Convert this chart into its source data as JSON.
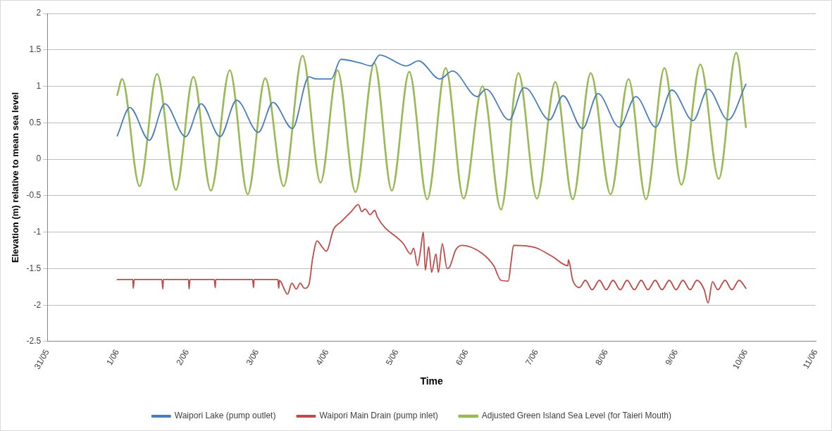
{
  "chart_data": {
    "type": "line",
    "xlabel": "Time",
    "ylabel": "Elevation (m) relative to mean sea level",
    "xlim": [
      "--05-31",
      "--06-11"
    ],
    "xticks": [
      {
        "value": "--05-31",
        "label": "31/05"
      },
      {
        "value": "--06-01",
        "label": "1/06"
      },
      {
        "value": "--06-02",
        "label": "2/06"
      },
      {
        "value": "--06-03",
        "label": "3/06"
      },
      {
        "value": "--06-04",
        "label": "4/06"
      },
      {
        "value": "--06-05",
        "label": "5/06"
      },
      {
        "value": "--06-06",
        "label": "6/06"
      },
      {
        "value": "--06-07",
        "label": "7/06"
      },
      {
        "value": "--06-08",
        "label": "8/06"
      },
      {
        "value": "--06-09",
        "label": "9/06"
      },
      {
        "value": "--06-10",
        "label": "10/06"
      },
      {
        "value": "--06-11",
        "label": "11/06"
      }
    ],
    "ylim": [
      -2.5,
      2
    ],
    "yticks": [
      -2.5,
      -2,
      -1.5,
      -1,
      -0.5,
      0,
      0.5,
      1,
      1.5,
      2
    ],
    "grid": "y",
    "legend": "bottom",
    "marker": "none",
    "line_style": "solid",
    "series": [
      {
        "name": "Waipori Lake (pump outlet)",
        "color": "#4a7ebb",
        "x": [
          "--06-01T00:00",
          "--06-01T04:20",
          "--06-01T11:00",
          "--06-01T16:20",
          "--06-01T23:30",
          "--06-02T04:50",
          "--06-02T11:20",
          "--06-02T17:00",
          "--06-03T00:30",
          "--06-03T05:30",
          "--06-03T12:10",
          "--06-03T17:50",
          "--06-03T20:20",
          "--06-04T01:30",
          "--06-04T04:50",
          "--06-04T11:30",
          "--06-04T15:10",
          "--06-04T18:10",
          "--06-05T03:20",
          "--06-05T07:30",
          "--06-05T14:50",
          "--06-05T19:10",
          "--06-06T03:40",
          "--06-06T06:40",
          "--06-06T14:40",
          "--06-06T19:40",
          "--06-06T21:10",
          "--06-07T04:30",
          "--06-07T09:10",
          "--06-07T15:50",
          "--06-07T21:10",
          "--06-08T04:30",
          "--06-08T10:10",
          "--06-08T17:00",
          "--06-08T22:30",
          "--06-09T05:50",
          "--06-09T11:00",
          "--06-09T17:50",
          "--06-10T00:00"
        ],
        "values": [
          0.32,
          0.71,
          0.26,
          0.76,
          0.31,
          0.76,
          0.31,
          0.81,
          0.37,
          0.78,
          0.42,
          1.13,
          1.1,
          1.1,
          1.37,
          1.32,
          1.28,
          1.43,
          1.28,
          1.35,
          1.1,
          1.21,
          0.86,
          0.96,
          0.54,
          0.98,
          0.96,
          0.54,
          0.87,
          0.42,
          0.9,
          0.44,
          0.86,
          0.44,
          0.95,
          0.53,
          0.96,
          0.54,
          1.03
        ]
      },
      {
        "name": "Waipori Main Drain (pump inlet)",
        "color": "#be4b48",
        "x": [
          "--06-01T00:00",
          "--06-01T05:20",
          "--06-01T05:30",
          "--06-01T05:50",
          "--06-01T15:20",
          "--06-01T15:40",
          "--06-01T15:50",
          "--06-02T00:30",
          "--06-02T00:40",
          "--06-02T01:00",
          "--06-02T09:20",
          "--06-02T09:40",
          "--06-02T09:50",
          "--06-02T22:30",
          "--06-02T22:50",
          "--06-02T23:00",
          "--06-03T07:10",
          "--06-03T07:30",
          "--06-03T07:40",
          "--06-03T10:30",
          "--06-03T12:00",
          "--06-03T13:30",
          "--06-03T14:50",
          "--06-03T16:20",
          "--06-03T17:50",
          "--06-03T19:10",
          "--06-03T20:40",
          "--06-03T22:20",
          "--06-03T23:50",
          "--06-04T02:20",
          "--06-04T04:50",
          "--06-04T08:20",
          "--06-04T10:50",
          "--06-04T12:00",
          "--06-04T13:10",
          "--06-04T14:50",
          "--06-04T16:30",
          "--06-04T17:20",
          "--06-05T02:20",
          "--06-05T04:50",
          "--06-05T05:50",
          "--06-05T07:10",
          "--06-05T08:10",
          "--06-05T09:10",
          "--06-05T09:50",
          "--06-05T11:00",
          "--06-05T12:00",
          "--06-05T13:30",
          "--06-05T14:20",
          "--06-05T15:40",
          "--06-05T17:20",
          "--06-05T18:10",
          "--06-05T20:20",
          "--06-05T22:30",
          "--06-06T05:20",
          "--06-06T09:20",
          "--06-06T11:50",
          "--06-06T14:20",
          "--06-06T15:20",
          "--06-06T16:10",
          "--06-06T23:30",
          "--06-07T05:20",
          "--06-07T10:50",
          "--06-07T11:00",
          "--06-07T12:30",
          "--06-07T14:50",
          "--06-07T16:50",
          "--06-07T19:10",
          "--06-07T21:40",
          "--06-08T00:00",
          "--06-08T02:20",
          "--06-08T04:50",
          "--06-08T07:10",
          "--06-08T09:40",
          "--06-08T12:00",
          "--06-08T14:20",
          "--06-08T16:50",
          "--06-08T19:10",
          "--06-08T21:40",
          "--06-09T00:00",
          "--06-09T02:20",
          "--06-09T04:50",
          "--06-09T07:10",
          "--06-09T09:40",
          "--06-09T11:00",
          "--06-09T12:30",
          "--06-09T14:20",
          "--06-09T16:50",
          "--06-09T19:10",
          "--06-09T21:40",
          "--06-10T00:00"
        ],
        "values": [
          -1.65,
          -1.65,
          -1.77,
          -1.65,
          -1.65,
          -1.78,
          -1.65,
          -1.65,
          -1.78,
          -1.65,
          -1.65,
          -1.76,
          -1.65,
          -1.65,
          -1.76,
          -1.65,
          -1.65,
          -1.77,
          -1.66,
          -1.85,
          -1.7,
          -1.78,
          -1.7,
          -1.77,
          -1.72,
          -1.35,
          -1.12,
          -1.2,
          -1.26,
          -0.96,
          -0.86,
          -0.72,
          -0.62,
          -0.72,
          -0.68,
          -0.76,
          -0.7,
          -0.79,
          -1.16,
          -1.3,
          -1.22,
          -1.46,
          -1.26,
          -1.0,
          -1.52,
          -1.2,
          -1.55,
          -1.3,
          -1.55,
          -1.16,
          -1.5,
          -1.48,
          -1.24,
          -1.18,
          -1.29,
          -1.46,
          -1.66,
          -1.67,
          -1.4,
          -1.18,
          -1.21,
          -1.33,
          -1.46,
          -1.38,
          -1.66,
          -1.76,
          -1.66,
          -1.79,
          -1.66,
          -1.79,
          -1.66,
          -1.79,
          -1.66,
          -1.79,
          -1.66,
          -1.79,
          -1.66,
          -1.79,
          -1.66,
          -1.79,
          -1.66,
          -1.79,
          -1.66,
          -1.79,
          -1.97,
          -1.68,
          -1.79,
          -1.66,
          -1.79,
          -1.66,
          -1.77
        ]
      },
      {
        "name": "Adjusted Green Island Sea Level (for Taieri Mouth)",
        "color": "#98b954",
        "x": [
          "--06-01T00:00",
          "--06-01T01:40",
          "--06-01T07:40",
          "--06-01T13:40",
          "--06-01T20:10",
          "--06-02T02:10",
          "--06-02T08:10",
          "--06-02T14:40",
          "--06-02T20:50",
          "--06-03T02:50",
          "--06-03T09:10",
          "--06-03T15:40",
          "--06-03T21:50",
          "--06-04T03:40",
          "--06-04T09:50",
          "--06-04T16:20",
          "--06-04T22:20",
          "--06-05T04:20",
          "--06-05T10:30",
          "--06-05T16:50",
          "--06-05T23:00",
          "--06-06T05:30",
          "--06-06T11:50",
          "--06-06T17:50",
          "--06-07T00:10",
          "--06-07T06:30",
          "--06-07T12:30",
          "--06-07T18:40",
          "--06-08T01:30",
          "--06-08T07:40",
          "--06-08T13:40",
          "--06-08T20:00",
          "--06-09T01:50",
          "--06-09T08:20",
          "--06-09T14:40",
          "--06-09T20:40",
          "--06-10T00:00"
        ],
        "values": [
          0.88,
          1.1,
          -0.37,
          1.17,
          -0.42,
          1.13,
          -0.43,
          1.22,
          -0.48,
          1.11,
          -0.37,
          1.42,
          -0.32,
          1.22,
          -0.45,
          1.32,
          -0.43,
          1.2,
          -0.55,
          1.25,
          -0.54,
          1.0,
          -0.69,
          1.18,
          -0.54,
          1.06,
          -0.55,
          1.18,
          -0.48,
          1.1,
          -0.55,
          1.25,
          -0.35,
          1.3,
          -0.27,
          1.46,
          0.44
        ]
      }
    ]
  }
}
